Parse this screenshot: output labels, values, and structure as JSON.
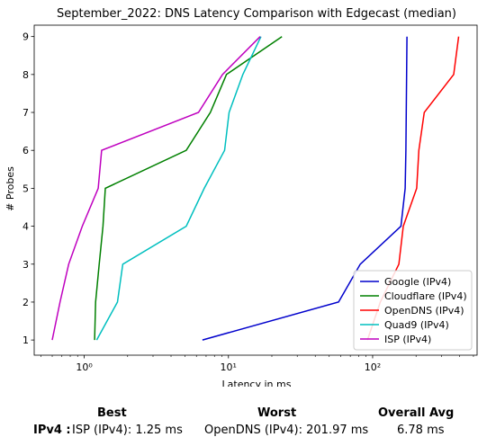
{
  "chart_data": {
    "type": "line",
    "title": "September_2022: DNS Latency Comparison with Edgecast (median)",
    "xlabel": "Latency in ms",
    "ylabel": "# Probes",
    "xscale": "log",
    "xlim": [
      0.45,
      530
    ],
    "ylim": [
      0.6,
      9.3
    ],
    "x_ticks": [
      {
        "value": 1,
        "label": "10⁰"
      },
      {
        "value": 10,
        "label": "10¹"
      },
      {
        "value": 100,
        "label": "10²"
      }
    ],
    "y_ticks": [
      1,
      2,
      3,
      4,
      5,
      6,
      7,
      8,
      9
    ],
    "grid": false,
    "legend_position": "lower-right",
    "series": [
      {
        "name": "Google (IPv4)",
        "color": "#0000cc",
        "points": [
          [
            6.6,
            1
          ],
          [
            58,
            2
          ],
          [
            82,
            3
          ],
          [
            157,
            4
          ],
          [
            168,
            5
          ],
          [
            170,
            6
          ],
          [
            171,
            7
          ],
          [
            172,
            8
          ],
          [
            173,
            9
          ]
        ]
      },
      {
        "name": "Cloudflare (IPv4)",
        "color": "#008000",
        "points": [
          [
            1.18,
            1
          ],
          [
            1.2,
            2
          ],
          [
            1.27,
            3
          ],
          [
            1.35,
            4
          ],
          [
            1.4,
            5
          ],
          [
            5.1,
            6
          ],
          [
            7.5,
            7
          ],
          [
            9.7,
            8
          ],
          [
            23.5,
            9
          ]
        ]
      },
      {
        "name": "OpenDNS (IPv4)",
        "color": "#ff0000",
        "points": [
          [
            92,
            1
          ],
          [
            113,
            2
          ],
          [
            152,
            3
          ],
          [
            163,
            4
          ],
          [
            202,
            5
          ],
          [
            209,
            6
          ],
          [
            228,
            7
          ],
          [
            365,
            8
          ],
          [
            395,
            9
          ]
        ]
      },
      {
        "name": "Quad9 (IPv4)",
        "color": "#00bfbf",
        "points": [
          [
            1.22,
            1
          ],
          [
            1.7,
            2
          ],
          [
            1.85,
            3
          ],
          [
            5.1,
            4
          ],
          [
            6.8,
            5
          ],
          [
            9.4,
            6
          ],
          [
            10.1,
            7
          ],
          [
            12.6,
            8
          ],
          [
            16.8,
            9
          ]
        ]
      },
      {
        "name": "ISP (IPv4)",
        "color": "#bf00bf",
        "points": [
          [
            0.6,
            1
          ],
          [
            0.68,
            2
          ],
          [
            0.78,
            3
          ],
          [
            0.97,
            4
          ],
          [
            1.25,
            5
          ],
          [
            1.32,
            6
          ],
          [
            6.2,
            7
          ],
          [
            9.1,
            8
          ],
          [
            16.6,
            9
          ]
        ]
      }
    ]
  },
  "summary": {
    "headers": {
      "best": "Best",
      "worst": "Worst",
      "avg": "Overall Avg"
    },
    "row_label": "IPv4 :",
    "best": "ISP (IPv4): 1.25 ms",
    "worst": "OpenDNS (IPv4): 201.97 ms",
    "avg": "6.78 ms"
  }
}
